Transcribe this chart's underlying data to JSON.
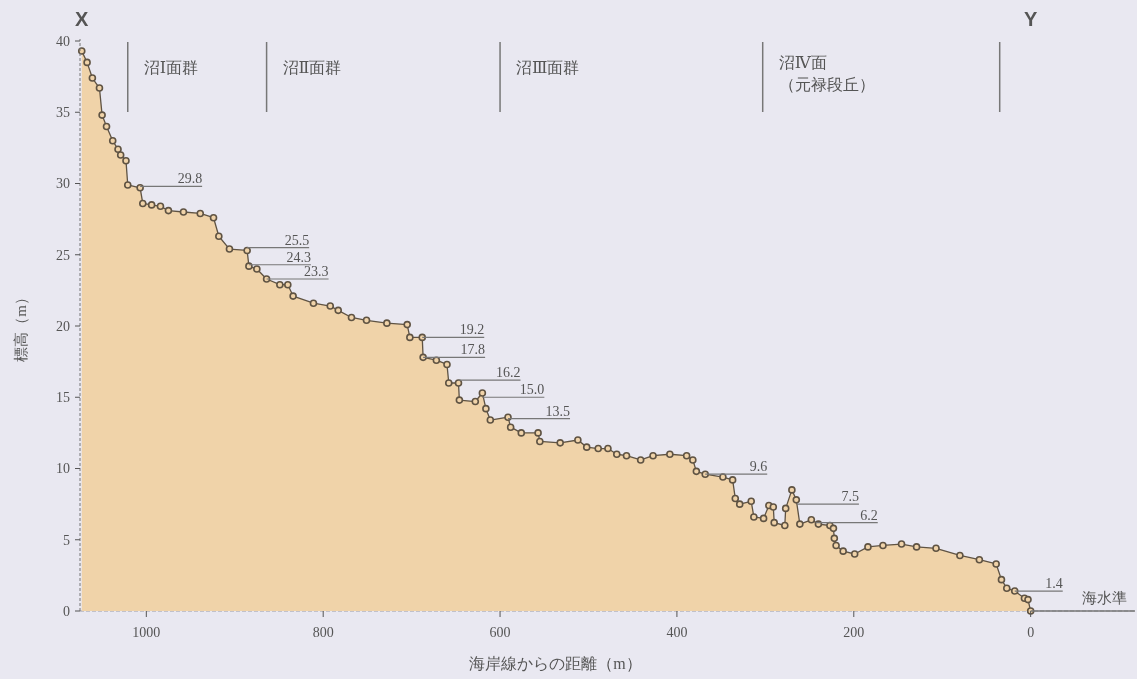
{
  "chart_data": {
    "type": "area",
    "xlabel": "海岸線からの距離（m）",
    "ylabel": "標高（m）",
    "xlim": [
      1075,
      -118
    ],
    "xticks": [
      1000,
      800,
      600,
      400,
      200,
      0
    ],
    "ylim": [
      0,
      40
    ],
    "yticks": [
      0,
      5,
      10,
      15,
      20,
      25,
      30,
      35,
      40
    ],
    "grid": false,
    "marker": "circle",
    "line_style": "solid",
    "series": [
      {
        "color": "#f0d3a9",
        "x": [
          1073,
          1067,
          1061,
          1053,
          1050,
          1045,
          1038,
          1032,
          1029,
          1023,
          1021,
          1007,
          1004,
          994,
          984,
          975,
          958,
          939,
          924,
          918,
          906,
          886,
          884,
          875,
          864,
          849,
          840,
          834,
          811,
          792,
          783,
          768,
          751,
          728,
          705,
          702,
          688,
          687,
          672,
          660,
          658,
          647,
          646,
          628,
          620,
          616,
          611,
          591,
          588,
          576,
          557,
          555,
          532,
          512,
          502,
          489,
          478,
          468,
          457,
          441,
          427,
          408,
          389,
          382,
          378,
          368,
          348,
          337,
          334,
          329,
          316,
          313,
          302,
          296,
          291,
          290,
          278,
          277,
          270,
          265,
          261,
          248,
          240,
          227,
          223,
          222,
          220,
          212,
          199,
          184,
          167,
          146,
          129,
          107,
          80,
          58,
          39,
          33,
          27,
          18,
          7,
          3,
          0
        ],
        "values": [
          39.3,
          38.5,
          37.4,
          36.7,
          34.8,
          34.0,
          33.0,
          32.4,
          32.0,
          31.6,
          29.9,
          29.7,
          28.6,
          28.5,
          28.4,
          28.1,
          28.0,
          27.9,
          27.6,
          26.3,
          25.4,
          25.3,
          24.2,
          24.0,
          23.3,
          22.9,
          22.9,
          22.1,
          21.6,
          21.4,
          21.1,
          20.6,
          20.4,
          20.2,
          20.1,
          19.2,
          19.2,
          17.8,
          17.6,
          17.3,
          16.0,
          16.0,
          14.8,
          14.7,
          15.3,
          14.2,
          13.4,
          13.6,
          12.9,
          12.5,
          12.5,
          11.9,
          11.8,
          12.0,
          11.5,
          11.4,
          11.4,
          11.0,
          10.9,
          10.6,
          10.9,
          11.0,
          10.9,
          10.6,
          9.8,
          9.6,
          9.4,
          9.2,
          7.9,
          7.5,
          7.7,
          6.6,
          6.5,
          7.4,
          7.3,
          6.2,
          6.0,
          7.2,
          8.5,
          7.8,
          6.1,
          6.4,
          6.1,
          6.0,
          5.8,
          5.1,
          4.6,
          4.2,
          4.0,
          4.5,
          4.6,
          4.7,
          4.5,
          4.4,
          3.9,
          3.6,
          3.3,
          2.2,
          1.6,
          1.4,
          0.9,
          0.8,
          0
        ]
      }
    ],
    "ref_lines": [
      {
        "axis": "y",
        "value": 0,
        "label": "海水準",
        "color": "#777777"
      },
      {
        "axis": "x",
        "value": 1021,
        "label": "沼Ⅰ面群",
        "color": "#777777"
      },
      {
        "axis": "x",
        "value": 864,
        "label": "沼Ⅱ面群",
        "color": "#777777"
      },
      {
        "axis": "x",
        "value": 600,
        "label": "沼Ⅲ面群",
        "color": "#777777"
      },
      {
        "axis": "x",
        "value": 303,
        "label": "沼Ⅳ面（元禄段丘）",
        "color": "#777777"
      },
      {
        "axis": "x",
        "value": 35,
        "color": "#777777"
      }
    ],
    "annotations": [
      "X",
      "Y",
      {
        "text": "29.8",
        "x": 1007,
        "y": 29.8
      },
      {
        "text": "25.5",
        "x": 886,
        "y": 25.5
      },
      {
        "text": "24.3",
        "x": 884,
        "y": 24.3
      },
      {
        "text": "23.3",
        "x": 864,
        "y": 23.3
      },
      {
        "text": "19.2",
        "x": 688,
        "y": 19.2
      },
      {
        "text": "17.8",
        "x": 687,
        "y": 17.8
      },
      {
        "text": "16.2",
        "x": 647,
        "y": 16.2
      },
      {
        "text": "15.0",
        "x": 620,
        "y": 15.0
      },
      {
        "text": "13.5",
        "x": 591,
        "y": 13.5
      },
      {
        "text": "9.6",
        "x": 368,
        "y": 9.6
      },
      {
        "text": "7.5",
        "x": 264.3,
        "y": 7.5
      },
      {
        "text": "6.2",
        "x": 243,
        "y": 6.2
      },
      {
        "text": "1.4",
        "x": 18,
        "y": 1.4
      }
    ]
  }
}
